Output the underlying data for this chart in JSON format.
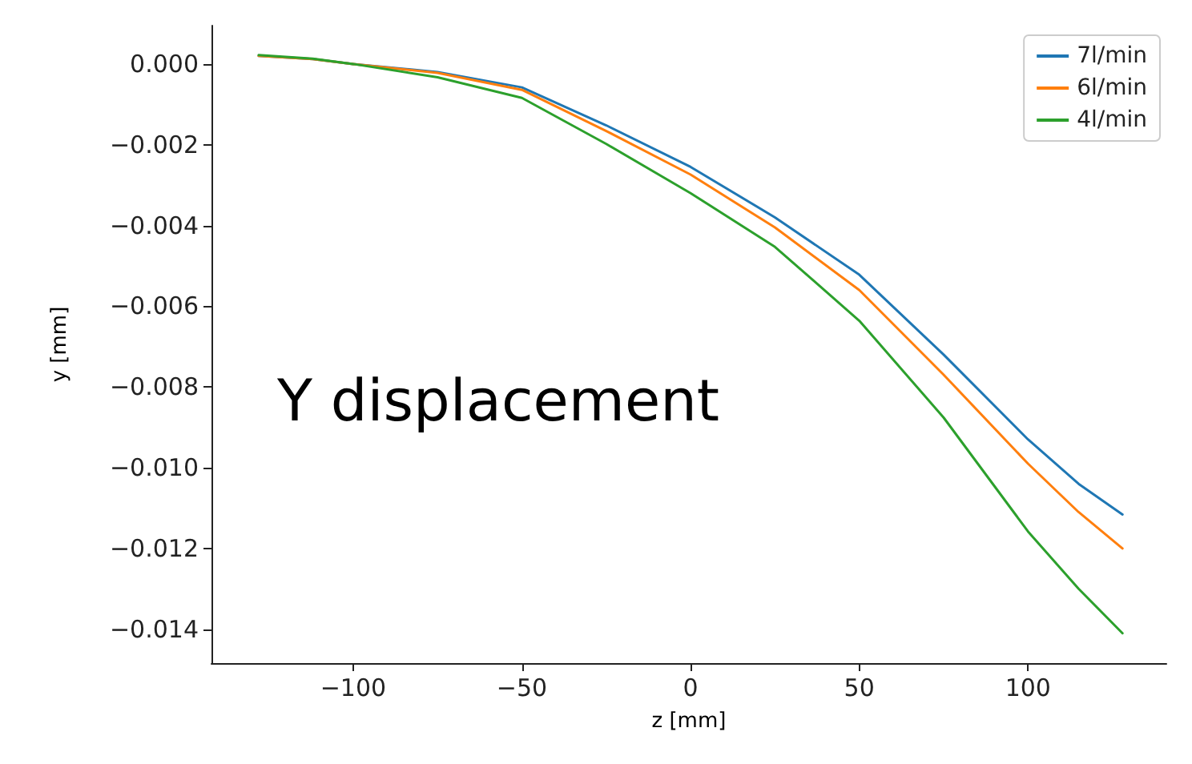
{
  "chart_data": {
    "type": "line",
    "xlabel": "z [mm]",
    "ylabel": "y [mm]",
    "annotations": [
      "Y displacement"
    ],
    "x": [
      -128,
      -112,
      -100,
      -75,
      -50,
      -25,
      0,
      25,
      50,
      75,
      100,
      115,
      128
    ],
    "series": [
      {
        "name": "7l/min",
        "color": "#1f77b4",
        "values": [
          0.0002,
          0.00012,
          0,
          -0.0002,
          -0.00058,
          -0.00152,
          -0.00255,
          -0.0038,
          -0.00522,
          -0.0072,
          -0.0093,
          -0.0104,
          -0.01116
        ]
      },
      {
        "name": "6l/min",
        "color": "#ff7f0e",
        "values": [
          0.0002,
          0.00012,
          0,
          -0.00022,
          -0.00064,
          -0.00166,
          -0.00274,
          -0.00405,
          -0.0056,
          -0.0077,
          -0.0099,
          -0.0111,
          -0.012
        ]
      },
      {
        "name": "4l/min",
        "color": "#2ca02c",
        "values": [
          0.00022,
          0.00013,
          0,
          -0.00033,
          -0.00084,
          -0.00198,
          -0.0032,
          -0.00453,
          -0.00636,
          -0.00876,
          -0.01158,
          -0.013,
          -0.0141
        ]
      }
    ],
    "xlim": [
      -142,
      141
    ],
    "ylim": [
      -0.01484,
      0.00095
    ],
    "xticks": [
      {
        "value": -100,
        "label": "−100"
      },
      {
        "value": -50,
        "label": "−50"
      },
      0,
      50,
      100
    ],
    "yticks": [
      {
        "value": 0,
        "label": "0.000"
      },
      {
        "value": -0.002,
        "label": "−0.002"
      },
      {
        "value": -0.004,
        "label": "−0.004"
      },
      {
        "value": -0.006,
        "label": "−0.006"
      },
      {
        "value": -0.008,
        "label": "−0.008"
      },
      {
        "value": -0.01,
        "label": "−0.010"
      },
      {
        "value": -0.012,
        "label": "−0.012"
      },
      {
        "value": -0.014,
        "label": "−0.014"
      }
    ],
    "grid": false,
    "legend": "top right",
    "marker": "none",
    "line_style": "solid"
  }
}
